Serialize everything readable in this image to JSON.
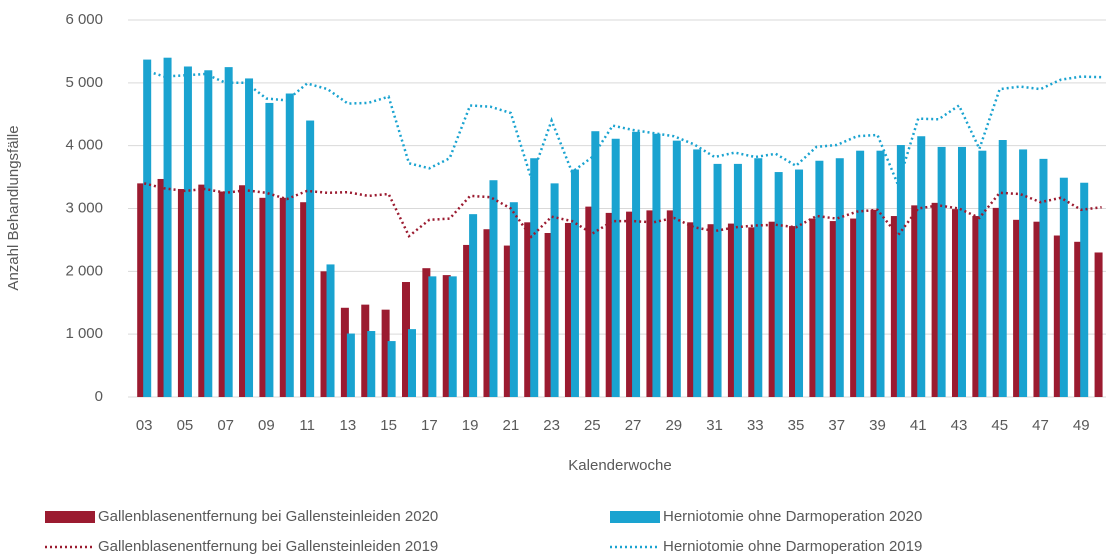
{
  "chart_data": {
    "type": "bar",
    "y_label": "Anzahl Behandlungsfälle",
    "x_label": "Kalenderwoche",
    "categories": [
      "03",
      null,
      "05",
      null,
      "07",
      null,
      "09",
      null,
      "11",
      null,
      "13",
      null,
      "15",
      null,
      "17",
      null,
      "19",
      null,
      "21",
      null,
      "23",
      null,
      "25",
      null,
      "27",
      null,
      "29",
      null,
      "31",
      null,
      "33",
      null,
      "35",
      null,
      "37",
      null,
      "39",
      null,
      "41",
      null,
      "43",
      null,
      "45",
      null,
      "47",
      null,
      "49",
      null
    ],
    "ylim": [
      0,
      6000
    ],
    "yticks": [
      0,
      {
        "value": 1000,
        "label": "1 000"
      },
      {
        "value": 2000,
        "label": "2 000"
      },
      {
        "value": 3000,
        "label": "3 000"
      },
      {
        "value": 4000,
        "label": "4 000"
      },
      {
        "value": 5000,
        "label": "5 000"
      },
      {
        "value": 6000,
        "label": "6 000"
      }
    ],
    "grid": true,
    "legend": "bottom",
    "series": [
      {
        "name": "Gallenblasenentfernung bei Gallensteinleiden 2020",
        "type": "bar",
        "color": "#9b1b30",
        "values": [
          3400,
          3470,
          3310,
          3380,
          3270,
          3370,
          3170,
          3170,
          3100,
          2000,
          1420,
          1470,
          1390,
          1830,
          2050,
          1940,
          2420,
          2670,
          2410,
          2780,
          2610,
          2770,
          3030,
          2930,
          2950,
          2970,
          2970,
          2780,
          2750,
          2760,
          2700,
          2790,
          2720,
          2840,
          2800,
          2840,
          2980,
          2880,
          3050,
          3090,
          2990,
          2880,
          3010,
          2820,
          2790,
          2570,
          2470,
          2300
        ]
      },
      {
        "name": "Herniotomie ohne Darmoperation 2020",
        "type": "bar",
        "color": "#1aa3d0",
        "values": [
          5370,
          5400,
          5260,
          5200,
          5250,
          5070,
          4680,
          4830,
          4400,
          2110,
          1010,
          1050,
          890,
          1080,
          1920,
          1920,
          2910,
          3450,
          3100,
          3800,
          3400,
          3620,
          4230,
          4110,
          4220,
          4190,
          4080,
          3940,
          3710,
          3710,
          3800,
          3580,
          3620,
          3760,
          3800,
          3920,
          3920,
          4010,
          4150,
          3980,
          3980,
          3920,
          4090,
          3940,
          3790,
          3490,
          3410,
          null
        ]
      },
      {
        "name": "Gallenblasenentfernung bei Gallensteinleiden 2019",
        "type": "line",
        "color": "#9b1b30",
        "values": [
          3400,
          3320,
          3280,
          3310,
          3250,
          3290,
          3250,
          3150,
          3280,
          3250,
          3260,
          3200,
          3230,
          2560,
          2820,
          2840,
          3200,
          3180,
          3000,
          2550,
          2870,
          2800,
          2600,
          2800,
          2800,
          2780,
          2850,
          2700,
          2640,
          2700,
          2730,
          2740,
          2700,
          2880,
          2840,
          2950,
          2980,
          2570,
          3000,
          3050,
          3000,
          2850,
          3250,
          3230,
          3100,
          3170,
          2980,
          3020
        ]
      },
      {
        "name": "Herniotomie ohne Darmoperation 2019",
        "type": "line",
        "color": "#1aa3d0",
        "values": [
          5200,
          5100,
          5120,
          5140,
          5000,
          5000,
          4750,
          4720,
          4990,
          4900,
          4670,
          4680,
          4780,
          3720,
          3640,
          3800,
          4640,
          4620,
          4520,
          3480,
          4400,
          3580,
          3820,
          4320,
          4250,
          4200,
          4150,
          4020,
          3820,
          3890,
          3820,
          3870,
          3680,
          3980,
          4010,
          4150,
          4170,
          3380,
          4430,
          4420,
          4640,
          3950,
          4900,
          4940,
          4900,
          5050,
          5100,
          5090
        ]
      }
    ]
  }
}
